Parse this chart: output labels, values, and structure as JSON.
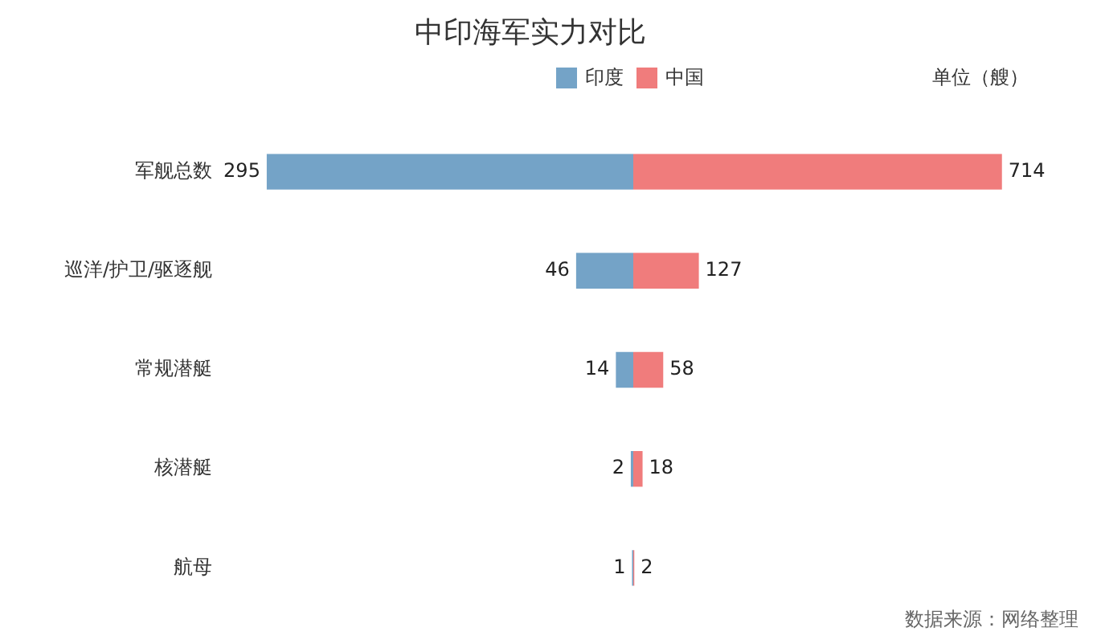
{
  "chart_data": [
    {
      "type": "bar",
      "orientation": "horizontal",
      "title": "中印海军实力对比",
      "categories": [
        "军舰总数",
        "巡洋/护卫/驱逐舰",
        "常规潜艇",
        "核潜艇",
        "航母"
      ],
      "series": [
        {
          "name": "印度",
          "color": "#74a3c7",
          "values": [
            295,
            46,
            14,
            2,
            1
          ]
        }
      ],
      "data_labels": true,
      "legend": "top right",
      "tick_labels": "y"
    },
    {
      "type": "bar",
      "orientation": "horizontal",
      "categories": [
        null,
        null,
        null,
        null,
        null
      ],
      "series": [
        {
          "name": "中国",
          "color": "#f07c7c",
          "values": [
            714,
            127,
            58,
            18,
            2
          ]
        }
      ],
      "data_labels": true,
      "legend": "top left",
      "tick_labels": false,
      "annotations": [
        "单位（艘）",
        "数据来源：网络整理"
      ]
    }
  ]
}
